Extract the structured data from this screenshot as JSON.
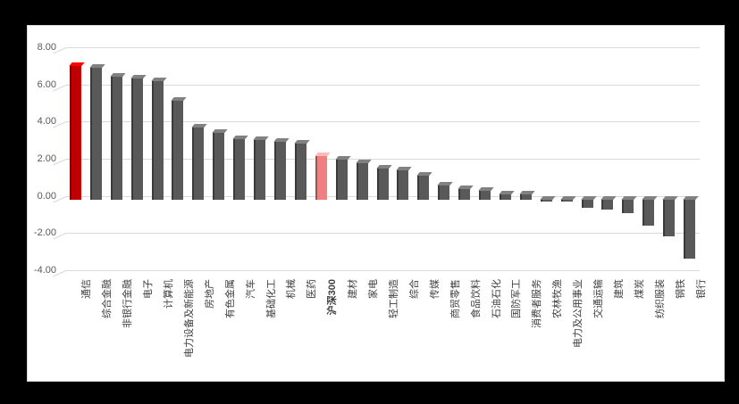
{
  "page": {
    "background_color": "#000000",
    "panel_background_color": "#ffffff"
  },
  "chart_data": {
    "type": "bar",
    "title": "",
    "xlabel": "",
    "ylabel": "",
    "legend": "none",
    "grid": true,
    "ylim": [
      -4,
      8
    ],
    "yticks": [
      {
        "value": 8,
        "label": "8.00"
      },
      {
        "value": 6,
        "label": "6.00"
      },
      {
        "value": 4,
        "label": "4.00"
      },
      {
        "value": 2,
        "label": "2.00"
      },
      {
        "value": 0,
        "label": "0.00"
      },
      {
        "value": -2,
        "label": "-2.00"
      },
      {
        "value": -4,
        "label": "-4.00"
      }
    ],
    "categories": [
      "通信",
      "综合金融",
      "非银行金融",
      "电子",
      "计算机",
      "电力设备及新能源",
      "房地产",
      "有色金属",
      "汽车",
      "基础化工",
      "机械",
      "医药",
      "沪深300",
      "建材",
      "家电",
      "轻工制造",
      "综合",
      "传媒",
      "商贸零售",
      "食品饮料",
      "石油石化",
      "国防军工",
      "消费者服务",
      "农林牧渔",
      "电力及公用事业",
      "交通运输",
      "建筑",
      "煤炭",
      "纺织服装",
      "钢铁",
      "银行"
    ],
    "values": [
      7.2,
      7.1,
      6.6,
      6.5,
      6.35,
      5.3,
      3.85,
      3.6,
      3.25,
      3.2,
      3.1,
      3.0,
      2.35,
      2.15,
      1.95,
      1.65,
      1.55,
      1.3,
      0.75,
      0.55,
      0.45,
      0.25,
      0.25,
      -0.1,
      -0.1,
      -0.45,
      -0.55,
      -0.75,
      -1.4,
      -2.0,
      -3.2
    ],
    "styles": {
      "default_bar_color": "#595959",
      "highlight_bar": {
        "category": "通信",
        "color": "#C00000"
      },
      "benchmark_bar": {
        "category": "沪深300",
        "color": "#F08080",
        "label_bold": true
      },
      "gridline_color": "#D9D9D9",
      "ytick_label_color": "#595959",
      "category_label_color": "#404040"
    }
  }
}
